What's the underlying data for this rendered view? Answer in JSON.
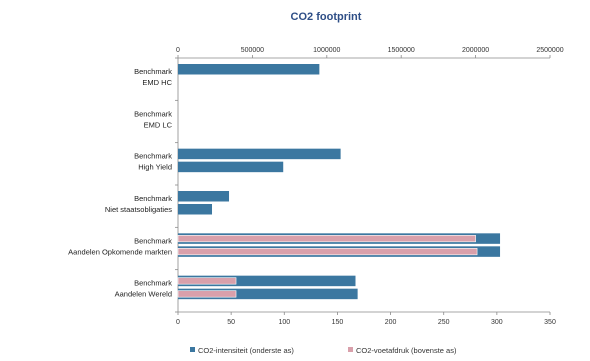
{
  "chart_data": {
    "type": "bar",
    "orientation": "horizontal",
    "title": "CO2 footprint",
    "categories": [
      "Benchmark\nEMD HC",
      "Benchmark\nEMD LC",
      "Benchmark\nHigh Yield",
      "Benchmark\nNiet staatsobligaties",
      "Benchmark\nAandelen Opkomende markten",
      "Benchmark\nAandelen Wereld"
    ],
    "series": [
      {
        "name": "CO2-intensiteit (onderste as)",
        "axis": "bottom",
        "color": "#3b77a0",
        "values": [
          [
            133,
            null
          ],
          [
            null,
            null
          ],
          [
            153,
            99
          ],
          [
            48,
            32
          ],
          [
            303,
            303
          ],
          [
            167,
            169
          ]
        ]
      },
      {
        "name": "CO2-voetafdruk (bovenste as)",
        "axis": "top",
        "color": "#d9a0ab",
        "values": [
          [
            null,
            null
          ],
          [
            null,
            null
          ],
          [
            null,
            null
          ],
          [
            null,
            null
          ],
          [
            2000000,
            2010000
          ],
          [
            390000,
            390000
          ]
        ]
      }
    ],
    "bottom_axis": {
      "min": 0,
      "max": 350,
      "ticks": [
        "0",
        "50",
        "100",
        "150",
        "200",
        "250",
        "300",
        "350"
      ]
    },
    "top_axis": {
      "min": 0,
      "max": 2500000,
      "ticks": [
        "0",
        "500000",
        "1000000",
        "1500000",
        "2000000",
        "2500000"
      ]
    },
    "legend_position": "bottom",
    "grid": false
  }
}
